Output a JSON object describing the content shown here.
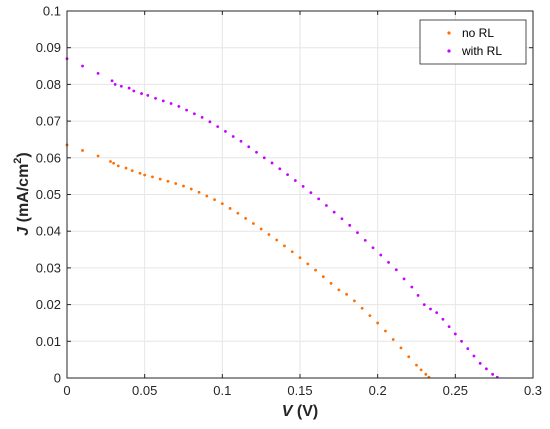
{
  "colors": {
    "no_rl": "#ff6f00",
    "with_rl": "#c800ff",
    "grid": "#e6e6e6",
    "axis": "#262626"
  },
  "chart_data": {
    "type": "scatter",
    "xlabel": {
      "var": "V",
      "unit": " (V)"
    },
    "ylabel": {
      "var": "J",
      "unit": " (mA/cm",
      "sup": "2",
      "close": ")"
    },
    "xlim": [
      0,
      0.3
    ],
    "ylim": [
      0,
      0.1
    ],
    "grid": true,
    "legend_position": "top-right",
    "xticks": [
      0,
      0.05,
      0.1,
      0.15,
      0.2,
      0.25,
      0.3
    ],
    "xtick_labels": [
      "0",
      "0.05",
      "0.1",
      "0.15",
      "0.2",
      "0.25",
      "0.3"
    ],
    "yticks": [
      0,
      0.01,
      0.02,
      0.03,
      0.04,
      0.05,
      0.06,
      0.07,
      0.08,
      0.09,
      0.1
    ],
    "ytick_labels": [
      "0",
      "0.01",
      "0.02",
      "0.03",
      "0.04",
      "0.05",
      "0.06",
      "0.07",
      "0.08",
      "0.09",
      "0.1"
    ],
    "series": [
      {
        "name": "no RL",
        "color": "#ff6f00",
        "points": [
          [
            0.0,
            0.0635
          ],
          [
            0.01,
            0.062
          ],
          [
            0.02,
            0.0605
          ],
          [
            0.028,
            0.059
          ],
          [
            0.03,
            0.0585
          ],
          [
            0.033,
            0.0578
          ],
          [
            0.038,
            0.0572
          ],
          [
            0.042,
            0.0565
          ],
          [
            0.047,
            0.0558
          ],
          [
            0.05,
            0.0553
          ],
          [
            0.055,
            0.0548
          ],
          [
            0.06,
            0.0542
          ],
          [
            0.065,
            0.0536
          ],
          [
            0.07,
            0.053
          ],
          [
            0.075,
            0.0523
          ],
          [
            0.08,
            0.0515
          ],
          [
            0.085,
            0.0506
          ],
          [
            0.09,
            0.0496
          ],
          [
            0.095,
            0.0486
          ],
          [
            0.1,
            0.0475
          ],
          [
            0.105,
            0.0462
          ],
          [
            0.11,
            0.0449
          ],
          [
            0.115,
            0.0435
          ],
          [
            0.12,
            0.0421
          ],
          [
            0.125,
            0.0406
          ],
          [
            0.13,
            0.0391
          ],
          [
            0.135,
            0.0376
          ],
          [
            0.14,
            0.036
          ],
          [
            0.145,
            0.0344
          ],
          [
            0.15,
            0.0328
          ],
          [
            0.155,
            0.0311
          ],
          [
            0.16,
            0.0294
          ],
          [
            0.165,
            0.0276
          ],
          [
            0.17,
            0.0258
          ],
          [
            0.175,
            0.024
          ],
          [
            0.18,
            0.0228
          ],
          [
            0.185,
            0.021
          ],
          [
            0.19,
            0.019
          ],
          [
            0.195,
            0.017
          ],
          [
            0.2,
            0.015
          ],
          [
            0.205,
            0.0128
          ],
          [
            0.21,
            0.0105
          ],
          [
            0.215,
            0.0082
          ],
          [
            0.22,
            0.0058
          ],
          [
            0.225,
            0.0035
          ],
          [
            0.228,
            0.0022
          ],
          [
            0.231,
            0.001
          ],
          [
            0.233,
            0.0002
          ]
        ]
      },
      {
        "name": "with RL",
        "color": "#c800ff",
        "points": [
          [
            0.0,
            0.087
          ],
          [
            0.01,
            0.085
          ],
          [
            0.02,
            0.083
          ],
          [
            0.029,
            0.081
          ],
          [
            0.031,
            0.08
          ],
          [
            0.035,
            0.0795
          ],
          [
            0.04,
            0.079
          ],
          [
            0.043,
            0.0782
          ],
          [
            0.048,
            0.0775
          ],
          [
            0.052,
            0.077
          ],
          [
            0.057,
            0.0762
          ],
          [
            0.062,
            0.0755
          ],
          [
            0.067,
            0.0748
          ],
          [
            0.072,
            0.074
          ],
          [
            0.077,
            0.073
          ],
          [
            0.082,
            0.072
          ],
          [
            0.087,
            0.071
          ],
          [
            0.092,
            0.0698
          ],
          [
            0.097,
            0.0685
          ],
          [
            0.102,
            0.0672
          ],
          [
            0.107,
            0.0658
          ],
          [
            0.112,
            0.0645
          ],
          [
            0.117,
            0.063
          ],
          [
            0.122,
            0.0615
          ],
          [
            0.127,
            0.06
          ],
          [
            0.132,
            0.0586
          ],
          [
            0.137,
            0.057
          ],
          [
            0.142,
            0.0554
          ],
          [
            0.147,
            0.0538
          ],
          [
            0.152,
            0.0522
          ],
          [
            0.157,
            0.0505
          ],
          [
            0.162,
            0.0488
          ],
          [
            0.167,
            0.047
          ],
          [
            0.172,
            0.0452
          ],
          [
            0.177,
            0.0434
          ],
          [
            0.182,
            0.0416
          ],
          [
            0.187,
            0.0396
          ],
          [
            0.192,
            0.0375
          ],
          [
            0.197,
            0.0355
          ],
          [
            0.202,
            0.0335
          ],
          [
            0.207,
            0.0315
          ],
          [
            0.212,
            0.0295
          ],
          [
            0.217,
            0.027
          ],
          [
            0.222,
            0.0248
          ],
          [
            0.226,
            0.0225
          ],
          [
            0.23,
            0.02
          ],
          [
            0.234,
            0.0188
          ],
          [
            0.238,
            0.0178
          ],
          [
            0.242,
            0.016
          ],
          [
            0.246,
            0.014
          ],
          [
            0.25,
            0.012
          ],
          [
            0.254,
            0.01
          ],
          [
            0.258,
            0.008
          ],
          [
            0.262,
            0.006
          ],
          [
            0.266,
            0.004
          ],
          [
            0.27,
            0.0025
          ],
          [
            0.274,
            0.001
          ],
          [
            0.277,
            0.0002
          ]
        ]
      }
    ]
  }
}
